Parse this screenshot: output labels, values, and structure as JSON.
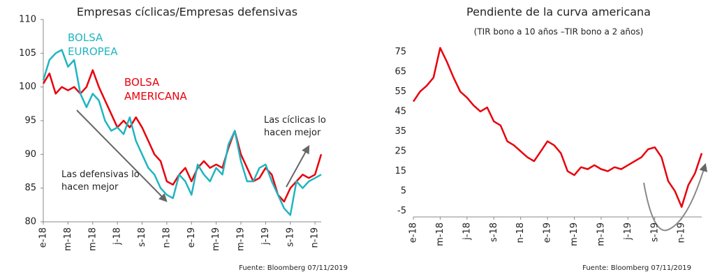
{
  "chart_data": [
    {
      "type": "line",
      "title": "Empresas cíclicas/Empresas defensivas",
      "source": "Fuente: Bloomberg 07/11/2019",
      "annotations": [
        "Las defensivas lo hacen mejor",
        "Las cíclicas lo hacen mejor"
      ],
      "categories": [
        "e-18",
        null,
        null,
        null,
        "m-18",
        null,
        null,
        null,
        "m-18",
        null,
        null,
        null,
        "j-18",
        null,
        null,
        null,
        "s-18",
        null,
        null,
        null,
        "n-18",
        null,
        null,
        null,
        "e-19",
        null,
        null,
        null,
        "m-19",
        null,
        null,
        null,
        "m-19",
        null,
        null,
        null,
        "j-19",
        null,
        null,
        null,
        "s-19",
        null,
        null,
        null,
        "n-19",
        null
      ],
      "series": [
        {
          "name": "BOLSA AMERICANA",
          "color": "#e8000b",
          "values": [
            100.5,
            102,
            99,
            100,
            99.5,
            100,
            99,
            100,
            102.5,
            100,
            98,
            96,
            94,
            95,
            94,
            95.5,
            94,
            92,
            90,
            89,
            86,
            85.5,
            87,
            88,
            86,
            88,
            89,
            88,
            88.5,
            88,
            91,
            93.5,
            90,
            88,
            86,
            86.5,
            88,
            87,
            84,
            83,
            85,
            86,
            87,
            86.5,
            87,
            90
          ]
        },
        {
          "name": "BOLSA EUROPEA",
          "color": "#1fb5c1",
          "values": [
            101,
            104,
            105,
            105.5,
            103,
            104,
            99,
            97,
            99,
            98,
            95,
            93.5,
            94,
            93,
            95.5,
            92,
            90,
            88,
            87,
            85,
            84,
            83.5,
            87,
            86,
            84,
            88.5,
            87,
            86,
            88,
            87,
            91.5,
            93.5,
            89,
            86,
            86,
            88,
            88.5,
            86,
            84,
            82,
            81,
            86,
            85,
            86,
            86.5,
            87
          ]
        }
      ],
      "ylim": [
        80,
        110
      ],
      "yticks": [
        80,
        85,
        90,
        95,
        100,
        105,
        110
      ]
    },
    {
      "type": "line",
      "title": "Pendiente de la curva americana",
      "subtitle": "(TIR bono a 10 años –TIR bono a 2 años)",
      "source": "Fuente: Bloomberg 07/11/2019",
      "categories": [
        "e-18",
        null,
        null,
        null,
        "m-18",
        null,
        null,
        null,
        "j-18",
        null,
        null,
        null,
        "s-18",
        null,
        null,
        null,
        "n-18",
        null,
        null,
        null,
        "e-19",
        null,
        null,
        null,
        "m-19",
        null,
        null,
        null,
        "m-19",
        null,
        null,
        null,
        "j-19",
        null,
        null,
        null,
        "s-19",
        null,
        null,
        null,
        "n-19",
        null,
        null,
        null
      ],
      "series": [
        {
          "name": "Pendiente",
          "color": "#e8000b",
          "values": [
            50,
            55,
            58,
            62,
            77,
            70,
            62,
            55,
            52,
            48,
            45,
            47,
            40,
            38,
            30,
            28,
            25,
            22,
            20,
            25,
            30,
            28,
            24,
            15,
            13,
            17,
            16,
            18,
            16,
            15,
            17,
            16,
            18,
            20,
            22,
            26,
            27,
            22,
            10,
            5,
            -3,
            8,
            14,
            24
          ]
        }
      ],
      "ylim": [
        -8,
        80
      ],
      "yticks": [
        -5,
        5,
        15,
        25,
        35,
        45,
        55,
        65,
        75
      ]
    }
  ]
}
